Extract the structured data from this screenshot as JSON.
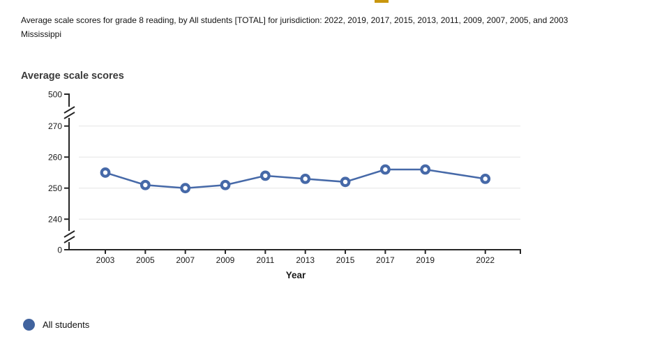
{
  "header": {
    "title": "Average scale scores for grade 8 reading, by All students [TOTAL] for jurisdiction: 2022, 2019, 2017, 2015, 2013, 2011, 2009, 2007, 2005, and 2003",
    "jurisdiction": "Mississippi"
  },
  "top_fragment": {
    "color": "#c9960d"
  },
  "legend": {
    "series_label": "All students",
    "swatch_color": "#41639e"
  },
  "chart_data": {
    "type": "line",
    "title": "Average scale scores",
    "xlabel": "Year",
    "ylabel": "Average scale scores",
    "x": [
      2003,
      2005,
      2007,
      2009,
      2011,
      2013,
      2015,
      2017,
      2019,
      2022
    ],
    "series": [
      {
        "name": "All students",
        "values": [
          255,
          251,
          250,
          251,
          254,
          253,
          252,
          256,
          256,
          253
        ],
        "color": "#4669a8",
        "marker": "open-circle"
      }
    ],
    "y_axis": {
      "tick_labels": [
        500,
        270,
        260,
        250,
        240,
        0
      ],
      "gridlines_at": [
        270,
        260,
        250,
        240
      ],
      "visible_band": [
        240,
        270
      ],
      "full_range": [
        0,
        500
      ],
      "axis_breaks": [
        [
          270,
          500
        ],
        [
          0,
          240
        ]
      ]
    },
    "grid": "horizontal",
    "legend_position": "bottom-left",
    "colors": {
      "line": "#4669a8",
      "grid": "#e7e7e7",
      "axis": "#262626",
      "tick_text": "#1a1a1a"
    }
  }
}
